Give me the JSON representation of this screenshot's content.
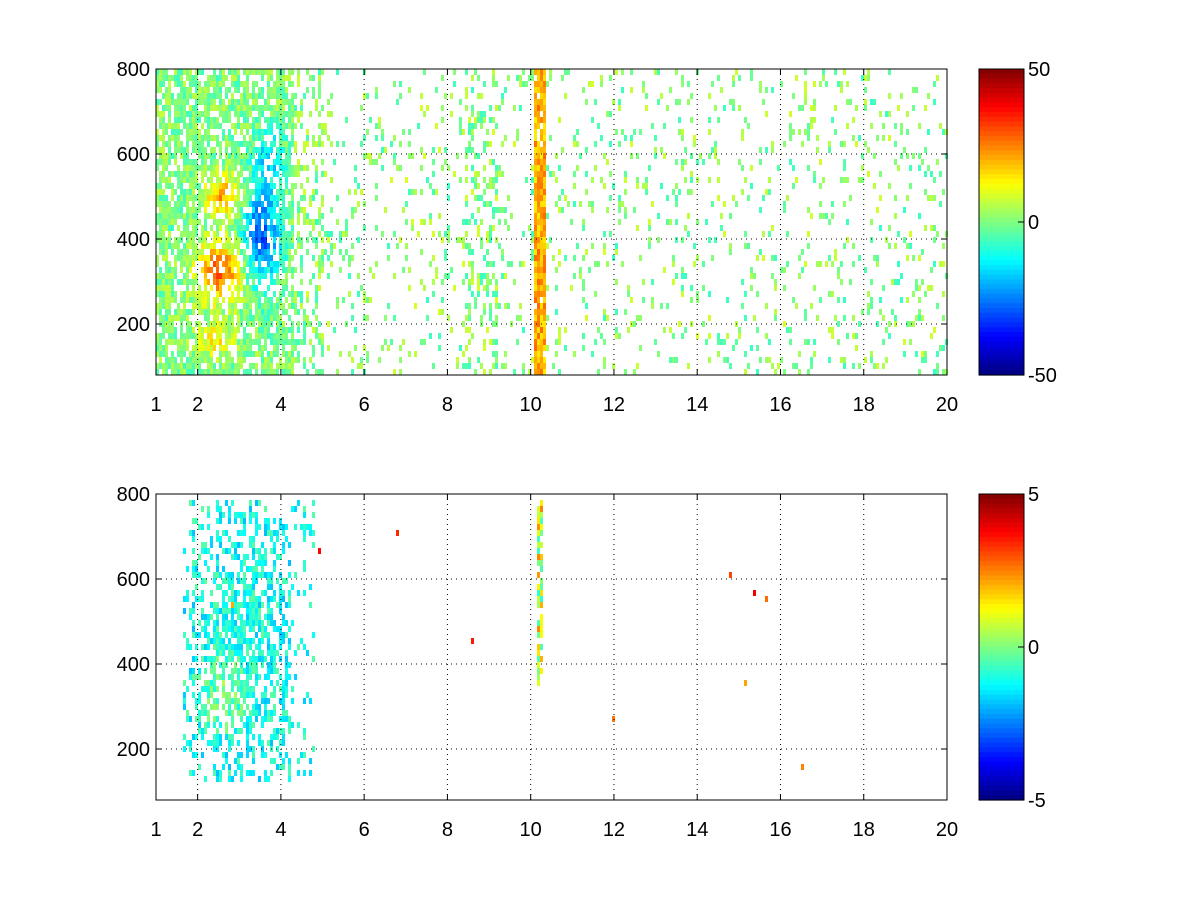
{
  "figure": {
    "background": "#ffffff"
  },
  "colormap": "jet",
  "chart_data": [
    {
      "type": "heatmap",
      "title": "",
      "xlabel": "",
      "ylabel": "",
      "xlim": [
        1,
        20
      ],
      "ylim": [
        80,
        800
      ],
      "x_ticks": [
        1,
        2,
        4,
        6,
        8,
        10,
        12,
        14,
        16,
        18,
        20
      ],
      "x_tick_labels": [
        "1",
        "2",
        "4",
        "6",
        "8",
        "10",
        "12",
        "14",
        "16",
        "18",
        "20"
      ],
      "y_ticks": [
        200,
        400,
        600,
        800
      ],
      "y_tick_labels": [
        "200",
        "400",
        "600",
        "800"
      ],
      "grid": true,
      "grid_style": "dotted",
      "colorbar": {
        "position": "right",
        "clim": [
          -50,
          50
        ],
        "ticks": [
          50,
          0,
          -50
        ],
        "tick_labels": [
          "50",
          "0",
          "-50"
        ]
      },
      "description_regions": [
        {
          "x": [
            1.5,
            3.2
          ],
          "y": [
            260,
            420
          ],
          "value": 28
        },
        {
          "x": [
            1.8,
            3.0
          ],
          "y": [
            470,
            560
          ],
          "value": 22
        },
        {
          "x": [
            1.8,
            2.8
          ],
          "y": [
            130,
            220
          ],
          "value": 18
        },
        {
          "x": [
            3.0,
            4.0
          ],
          "y": [
            330,
            640
          ],
          "value": -26
        },
        {
          "x": [
            10.1,
            10.25
          ],
          "y": [
            200,
            800
          ],
          "value": 14
        }
      ]
    },
    {
      "type": "heatmap",
      "title": "",
      "xlabel": "",
      "ylabel": "",
      "xlim": [
        1,
        20
      ],
      "ylim": [
        80,
        800
      ],
      "x_ticks": [
        1,
        2,
        4,
        6,
        8,
        10,
        12,
        14,
        16,
        18,
        20
      ],
      "x_tick_labels": [
        "1",
        "2",
        "4",
        "6",
        "8",
        "10",
        "12",
        "14",
        "16",
        "18",
        "20"
      ],
      "y_ticks": [
        200,
        400,
        600,
        800
      ],
      "y_tick_labels": [
        "200",
        "400",
        "600",
        "800"
      ],
      "grid": true,
      "grid_style": "dotted",
      "colorbar": {
        "position": "right",
        "clim": [
          -5,
          5
        ],
        "ticks": [
          5,
          0,
          -5
        ],
        "tick_labels": [
          "5",
          "0",
          "-5"
        ]
      },
      "description_regions": [
        {
          "x": [
            1.6,
            4.8
          ],
          "y": [
            140,
            780
          ],
          "value": -0.8
        },
        {
          "x": [
            10.1,
            10.25
          ],
          "y": [
            350,
            800
          ],
          "value": 0.5
        }
      ]
    }
  ]
}
